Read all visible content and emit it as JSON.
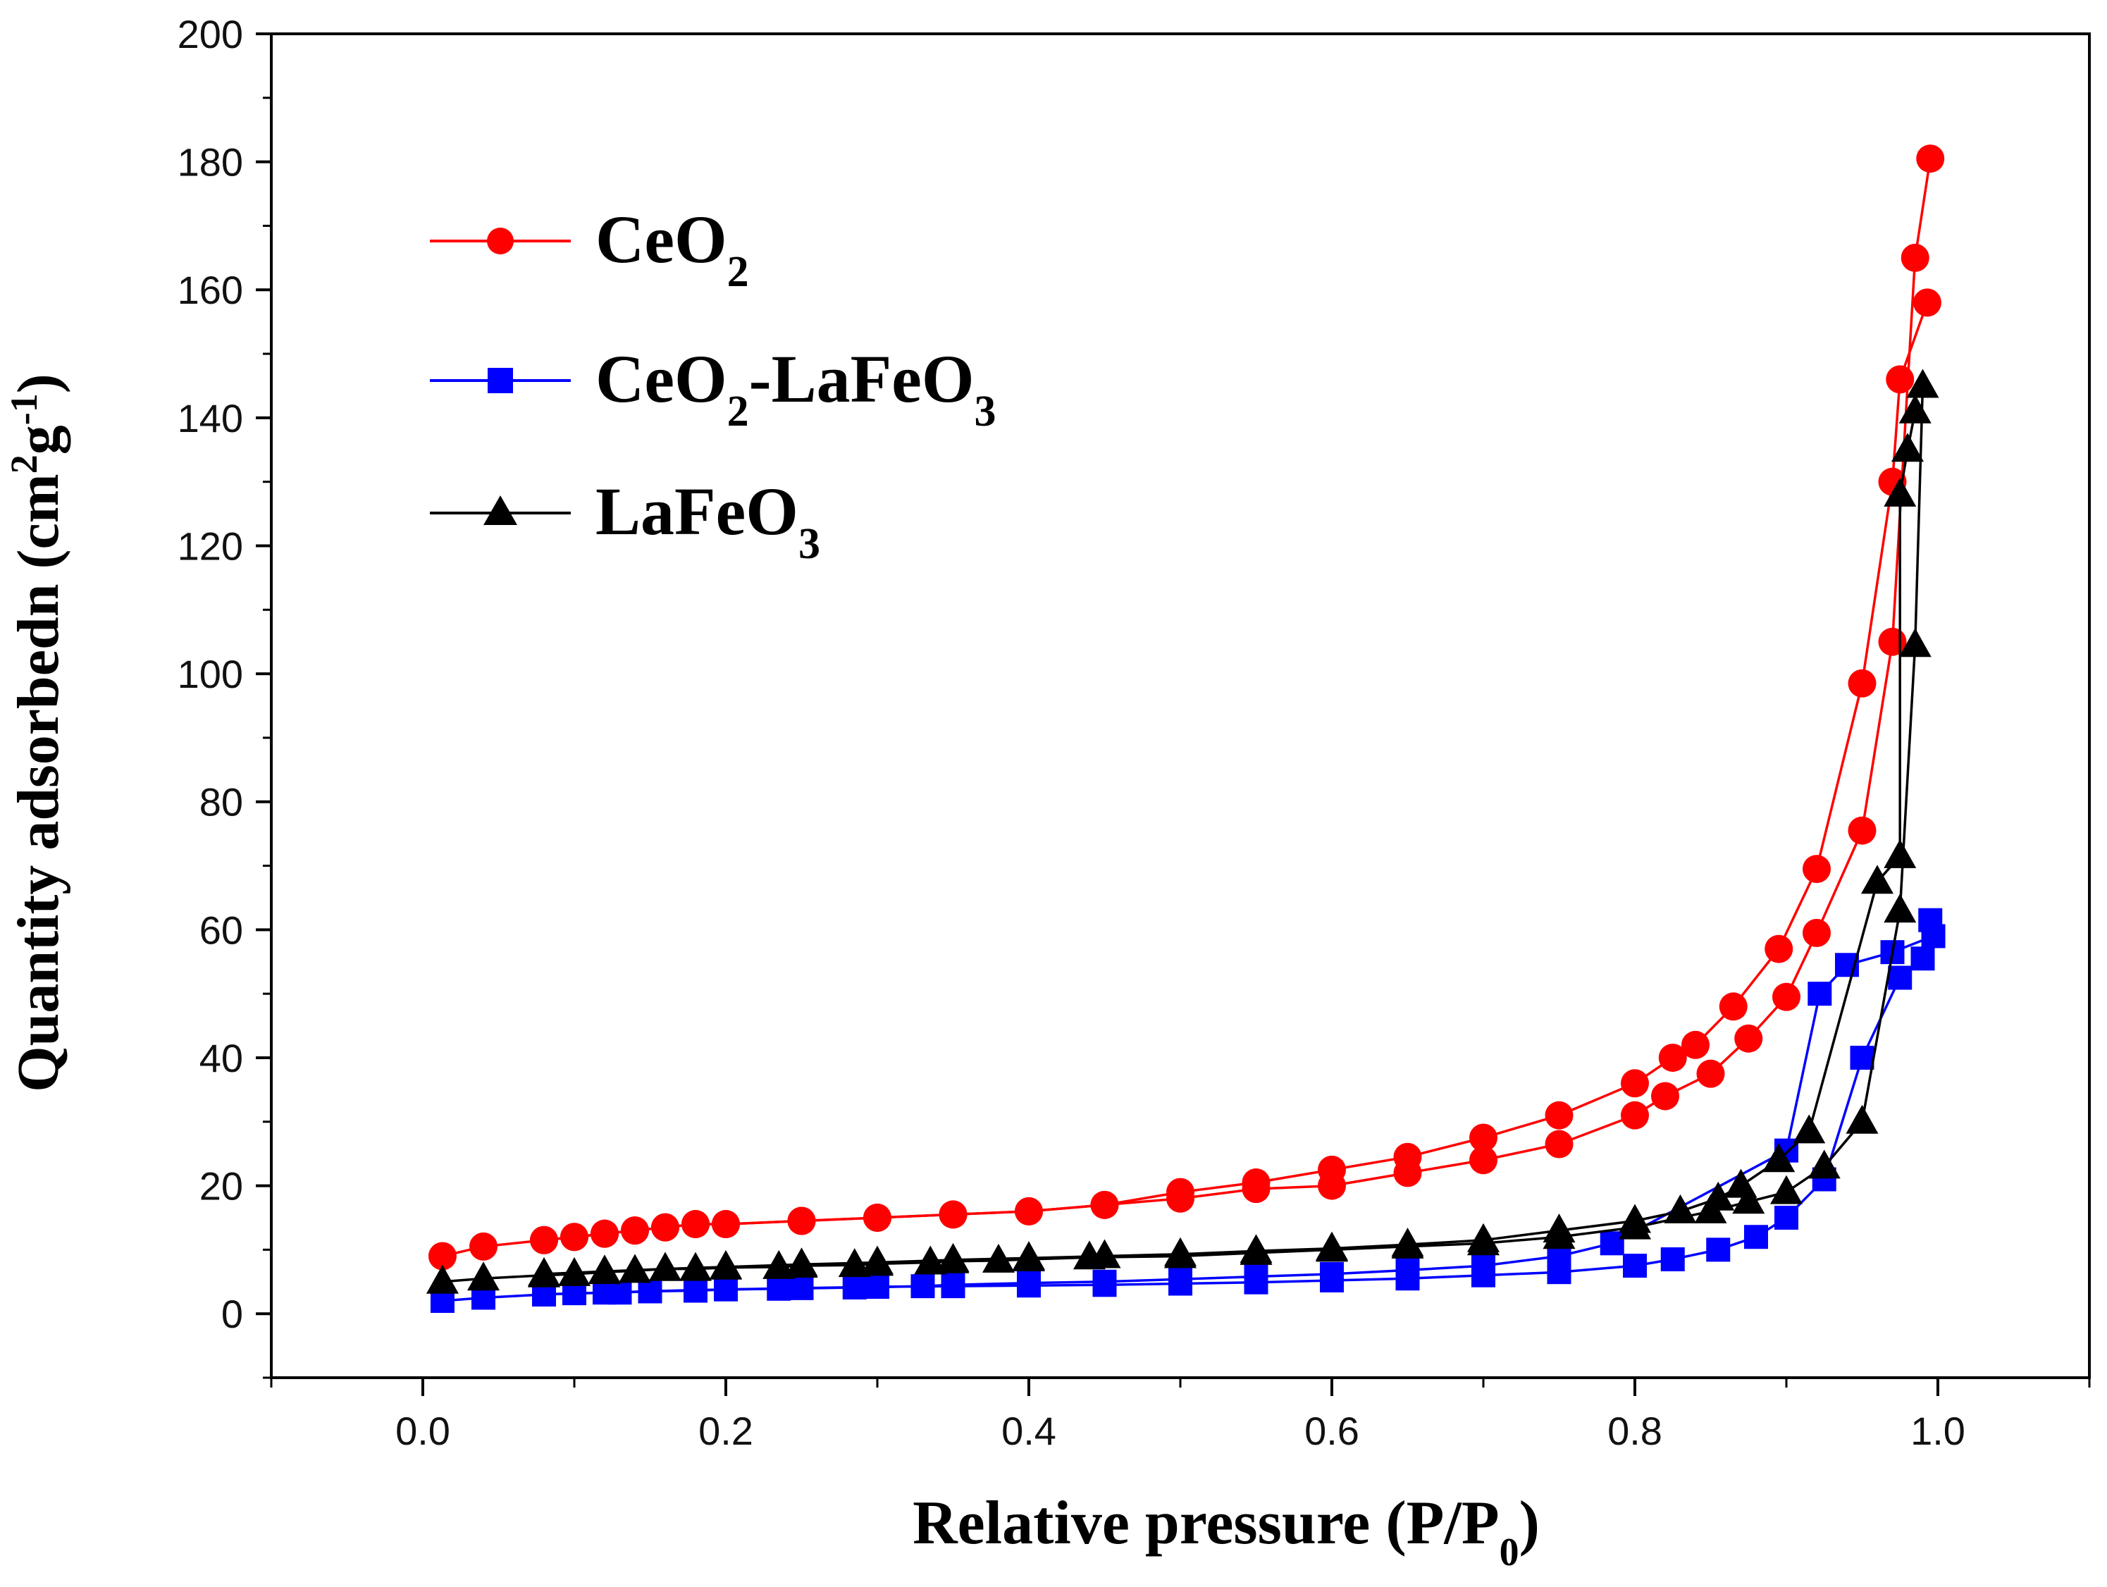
{
  "chart_data": {
    "type": "line",
    "title": "",
    "xlabel": {
      "main": "Relative pressure (P/P",
      "sub": "0",
      "close": ")"
    },
    "ylabel": {
      "main": "Quantity adsorbedn (cm",
      "sup1": "2",
      "mid": "g",
      "sup2": "-1",
      "close": ")"
    },
    "xlim": [
      -0.1,
      1.1
    ],
    "ylim": [
      -10,
      200
    ],
    "xticks": [
      "0.0",
      "0.2",
      "0.4",
      "0.6",
      "0.8",
      "1.0"
    ],
    "xtick_values": [
      0.0,
      0.2,
      0.4,
      0.6,
      0.8,
      1.0
    ],
    "yticks": [
      "0",
      "20",
      "40",
      "60",
      "80",
      "100",
      "120",
      "140",
      "160",
      "180",
      "200"
    ],
    "ytick_values": [
      0,
      20,
      40,
      60,
      80,
      100,
      120,
      140,
      160,
      180,
      200
    ],
    "grid": false,
    "legend_position": "top-left",
    "series": [
      {
        "name": "CeO2",
        "legend": {
          "base": "CeO",
          "sub1": "2",
          "rest": "",
          "sub2": ""
        },
        "color": "#ff0000",
        "marker": "circle",
        "adsorption": [
          [
            0.013,
            9
          ],
          [
            0.04,
            10.5
          ],
          [
            0.08,
            11.5
          ],
          [
            0.1,
            12
          ],
          [
            0.12,
            12.5
          ],
          [
            0.14,
            13
          ],
          [
            0.16,
            13.5
          ],
          [
            0.18,
            14
          ],
          [
            0.2,
            14
          ],
          [
            0.25,
            14.5
          ],
          [
            0.3,
            15
          ],
          [
            0.35,
            15.5
          ],
          [
            0.4,
            16
          ],
          [
            0.45,
            17
          ],
          [
            0.5,
            18
          ],
          [
            0.55,
            19.5
          ],
          [
            0.6,
            20
          ],
          [
            0.65,
            22
          ],
          [
            0.7,
            24
          ],
          [
            0.75,
            26.5
          ],
          [
            0.8,
            31
          ],
          [
            0.82,
            34
          ],
          [
            0.85,
            37.5
          ],
          [
            0.875,
            43
          ],
          [
            0.9,
            49.5
          ],
          [
            0.92,
            59.5
          ],
          [
            0.95,
            75.5
          ],
          [
            0.97,
            105
          ],
          [
            0.985,
            165
          ],
          [
            0.995,
            180.5
          ]
        ],
        "desorption": [
          [
            0.993,
            158
          ],
          [
            0.975,
            146
          ],
          [
            0.97,
            130
          ],
          [
            0.95,
            98.5
          ],
          [
            0.92,
            69.5
          ],
          [
            0.895,
            57
          ],
          [
            0.865,
            48
          ],
          [
            0.84,
            42
          ],
          [
            0.825,
            40
          ],
          [
            0.8,
            36
          ],
          [
            0.75,
            31
          ],
          [
            0.7,
            27.5
          ],
          [
            0.65,
            24.5
          ],
          [
            0.6,
            22.5
          ],
          [
            0.55,
            20.5
          ],
          [
            0.5,
            19
          ],
          [
            0.45,
            17
          ],
          [
            0.4,
            16
          ],
          [
            0.35,
            15.5
          ],
          [
            0.3,
            15
          ],
          [
            0.25,
            14.5
          ],
          [
            0.2,
            14
          ],
          [
            0.18,
            14
          ],
          [
            0.16,
            13.5
          ],
          [
            0.14,
            13
          ],
          [
            0.12,
            12.5
          ],
          [
            0.1,
            12
          ],
          [
            0.08,
            11.5
          ]
        ]
      },
      {
        "name": "CeO2-LaFeO3",
        "legend": {
          "base": "CeO",
          "sub1": "2",
          "rest": "-LaFeO",
          "sub2": "3"
        },
        "color": "#0000ff",
        "marker": "square",
        "adsorption": [
          [
            0.013,
            2
          ],
          [
            0.04,
            2.5
          ],
          [
            0.08,
            3
          ],
          [
            0.1,
            3.2
          ],
          [
            0.13,
            3.3
          ],
          [
            0.15,
            3.5
          ],
          [
            0.18,
            3.6
          ],
          [
            0.2,
            3.8
          ],
          [
            0.25,
            4
          ],
          [
            0.3,
            4.2
          ],
          [
            0.35,
            4.3
          ],
          [
            0.4,
            4.4
          ],
          [
            0.45,
            4.5
          ],
          [
            0.5,
            4.7
          ],
          [
            0.55,
            4.9
          ],
          [
            0.6,
            5.2
          ],
          [
            0.65,
            5.5
          ],
          [
            0.7,
            6
          ],
          [
            0.75,
            6.5
          ],
          [
            0.8,
            7.5
          ],
          [
            0.825,
            8.5
          ],
          [
            0.855,
            10
          ],
          [
            0.88,
            12
          ],
          [
            0.9,
            15
          ],
          [
            0.925,
            21
          ],
          [
            0.95,
            40
          ],
          [
            0.975,
            52.5
          ],
          [
            0.99,
            55.5
          ],
          [
            0.995,
            61.5
          ]
        ],
        "desorption": [
          [
            0.997,
            59
          ],
          [
            0.97,
            56.5
          ],
          [
            0.94,
            54.5
          ],
          [
            0.922,
            50
          ],
          [
            0.9,
            25.5
          ],
          [
            0.785,
            11
          ],
          [
            0.75,
            9
          ],
          [
            0.7,
            7.5
          ],
          [
            0.65,
            6.8
          ],
          [
            0.6,
            6.2
          ],
          [
            0.55,
            5.8
          ],
          [
            0.5,
            5.4
          ],
          [
            0.45,
            5
          ],
          [
            0.4,
            4.8
          ],
          [
            0.35,
            4.5
          ],
          [
            0.33,
            4.3
          ],
          [
            0.285,
            4.1
          ],
          [
            0.235,
            3.9
          ],
          [
            0.18,
            3.7
          ],
          [
            0.15,
            3.5
          ],
          [
            0.12,
            3.3
          ],
          [
            0.08,
            3
          ]
        ]
      },
      {
        "name": "LaFeO3",
        "legend": {
          "base": "LaFeO",
          "sub1": "3",
          "rest": "",
          "sub2": ""
        },
        "color": "#000000",
        "marker": "triangle",
        "adsorption": [
          [
            0.013,
            5
          ],
          [
            0.04,
            5.5
          ],
          [
            0.08,
            6
          ],
          [
            0.1,
            6.2
          ],
          [
            0.12,
            6.5
          ],
          [
            0.14,
            6.7
          ],
          [
            0.16,
            7
          ],
          [
            0.18,
            7
          ],
          [
            0.2,
            7.2
          ],
          [
            0.235,
            7.3
          ],
          [
            0.25,
            7.5
          ],
          [
            0.285,
            7.6
          ],
          [
            0.3,
            7.8
          ],
          [
            0.335,
            8
          ],
          [
            0.35,
            8.2
          ],
          [
            0.38,
            8.3
          ],
          [
            0.4,
            8.5
          ],
          [
            0.44,
            8.8
          ],
          [
            0.5,
            9
          ],
          [
            0.55,
            9.5
          ],
          [
            0.6,
            10
          ],
          [
            0.65,
            10.5
          ],
          [
            0.7,
            11
          ],
          [
            0.75,
            12
          ],
          [
            0.8,
            13.5
          ],
          [
            0.85,
            16
          ],
          [
            0.875,
            17.5
          ],
          [
            0.9,
            19
          ],
          [
            0.925,
            23
          ],
          [
            0.95,
            30
          ],
          [
            0.975,
            63
          ],
          [
            0.985,
            104.5
          ],
          [
            0.99,
            145
          ]
        ],
        "desorption": [
          [
            0.985,
            141
          ],
          [
            0.98,
            135
          ],
          [
            0.975,
            128
          ],
          [
            0.975,
            71.5
          ],
          [
            0.96,
            67.5
          ],
          [
            0.915,
            28.5
          ],
          [
            0.895,
            24
          ],
          [
            0.87,
            20
          ],
          [
            0.855,
            18
          ],
          [
            0.83,
            16
          ],
          [
            0.8,
            14.5
          ],
          [
            0.75,
            13
          ],
          [
            0.7,
            11.5
          ],
          [
            0.65,
            10.8
          ],
          [
            0.6,
            10.2
          ],
          [
            0.55,
            9.8
          ],
          [
            0.5,
            9.3
          ],
          [
            0.45,
            9
          ],
          [
            0.4,
            8.7
          ],
          [
            0.35,
            8.4
          ],
          [
            0.3,
            8
          ],
          [
            0.25,
            7.7
          ],
          [
            0.2,
            7.3
          ],
          [
            0.16,
            7
          ],
          [
            0.12,
            6.6
          ],
          [
            0.08,
            6.2
          ]
        ]
      }
    ]
  }
}
